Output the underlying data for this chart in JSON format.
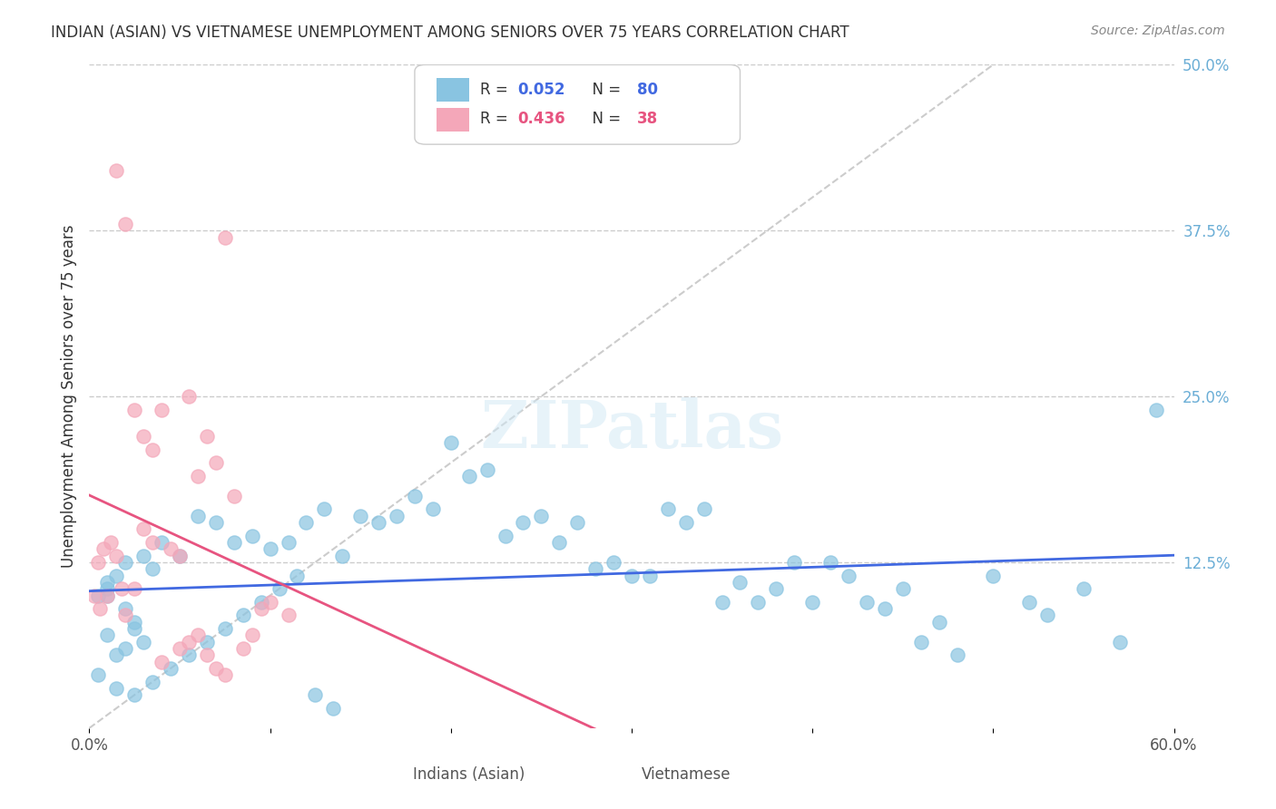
{
  "title": "INDIAN (ASIAN) VS VIETNAMESE UNEMPLOYMENT AMONG SENIORS OVER 75 YEARS CORRELATION CHART",
  "source": "Source: ZipAtlas.com",
  "xlabel_bottom": "",
  "ylabel": "Unemployment Among Seniors over 75 years",
  "xlim": [
    0.0,
    0.6
  ],
  "ylim": [
    0.0,
    0.5
  ],
  "xticks": [
    0.0,
    0.1,
    0.2,
    0.3,
    0.4,
    0.5,
    0.6
  ],
  "xticklabels": [
    "0.0%",
    "",
    "",
    "",
    "",
    "",
    "60.0%"
  ],
  "yticks_right": [
    0.0,
    0.125,
    0.25,
    0.375,
    0.5
  ],
  "yticklabels_right": [
    "",
    "12.5%",
    "25.0%",
    "37.5%",
    "50.0%"
  ],
  "legend_indian_label": "Indians (Asian)",
  "legend_viet_label": "Vietnamese",
  "legend_indian_r": "R = 0.052",
  "legend_indian_n": "N = 80",
  "legend_viet_r": "R = 0.436",
  "legend_viet_n": "N = 38",
  "color_indian": "#89c4e1",
  "color_viet": "#f4a7b9",
  "color_indian_line": "#4169E1",
  "color_viet_line": "#e75480",
  "color_diagonal": "#cccccc",
  "color_title": "#333333",
  "color_right_axis": "#6baed6",
  "watermark": "ZIPatlas",
  "indian_x": [
    0.02,
    0.01,
    0.03,
    0.01,
    0.02,
    0.01,
    0.015,
    0.005,
    0.025,
    0.035,
    0.04,
    0.05,
    0.01,
    0.02,
    0.015,
    0.03,
    0.025,
    0.08,
    0.06,
    0.07,
    0.09,
    0.1,
    0.12,
    0.15,
    0.13,
    0.11,
    0.14,
    0.16,
    0.18,
    0.17,
    0.2,
    0.22,
    0.19,
    0.21,
    0.23,
    0.25,
    0.24,
    0.27,
    0.26,
    0.28,
    0.3,
    0.29,
    0.31,
    0.33,
    0.32,
    0.34,
    0.35,
    0.37,
    0.36,
    0.38,
    0.4,
    0.39,
    0.42,
    0.41,
    0.43,
    0.45,
    0.44,
    0.46,
    0.48,
    0.47,
    0.5,
    0.52,
    0.55,
    0.53,
    0.57,
    0.59,
    0.005,
    0.015,
    0.025,
    0.035,
    0.045,
    0.055,
    0.065,
    0.075,
    0.085,
    0.095,
    0.105,
    0.115,
    0.125,
    0.135
  ],
  "indian_y": [
    0.125,
    0.11,
    0.13,
    0.1,
    0.09,
    0.105,
    0.115,
    0.1,
    0.08,
    0.12,
    0.14,
    0.13,
    0.07,
    0.06,
    0.055,
    0.065,
    0.075,
    0.14,
    0.16,
    0.155,
    0.145,
    0.135,
    0.155,
    0.16,
    0.165,
    0.14,
    0.13,
    0.155,
    0.175,
    0.16,
    0.215,
    0.195,
    0.165,
    0.19,
    0.145,
    0.16,
    0.155,
    0.155,
    0.14,
    0.12,
    0.115,
    0.125,
    0.115,
    0.155,
    0.165,
    0.165,
    0.095,
    0.095,
    0.11,
    0.105,
    0.095,
    0.125,
    0.115,
    0.125,
    0.095,
    0.105,
    0.09,
    0.065,
    0.055,
    0.08,
    0.115,
    0.095,
    0.105,
    0.085,
    0.065,
    0.24,
    0.04,
    0.03,
    0.025,
    0.035,
    0.045,
    0.055,
    0.065,
    0.075,
    0.085,
    0.095,
    0.105,
    0.115,
    0.025,
    0.015
  ],
  "viet_x": [
    0.005,
    0.01,
    0.015,
    0.008,
    0.012,
    0.003,
    0.018,
    0.006,
    0.02,
    0.025,
    0.04,
    0.055,
    0.065,
    0.07,
    0.08,
    0.06,
    0.03,
    0.035,
    0.045,
    0.05,
    0.075,
    0.085,
    0.09,
    0.095,
    0.1,
    0.11,
    0.015,
    0.02,
    0.025,
    0.03,
    0.035,
    0.04,
    0.05,
    0.055,
    0.06,
    0.065,
    0.07,
    0.075
  ],
  "viet_y": [
    0.125,
    0.1,
    0.13,
    0.135,
    0.14,
    0.1,
    0.105,
    0.09,
    0.085,
    0.105,
    0.24,
    0.25,
    0.22,
    0.2,
    0.175,
    0.19,
    0.15,
    0.14,
    0.135,
    0.13,
    0.37,
    0.06,
    0.07,
    0.09,
    0.095,
    0.085,
    0.42,
    0.38,
    0.24,
    0.22,
    0.21,
    0.05,
    0.06,
    0.065,
    0.07,
    0.055,
    0.045,
    0.04
  ]
}
